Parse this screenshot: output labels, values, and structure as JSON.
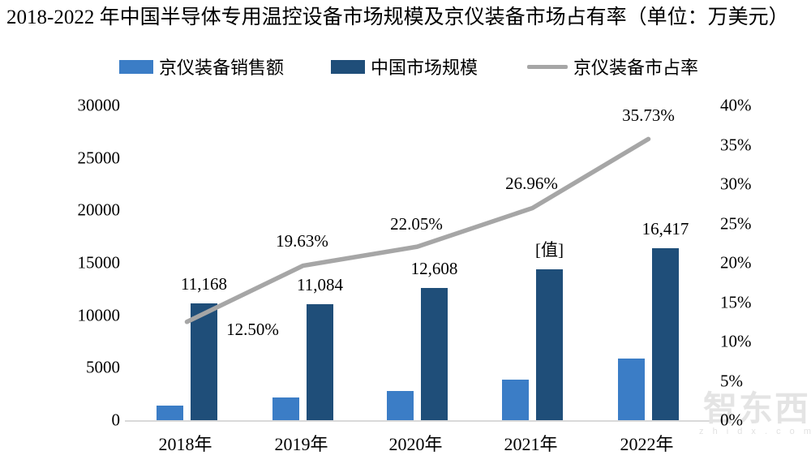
{
  "title": "2018-2022 年中国半导体专用温控设备市场规模及京仪装备市场占有率（单位：万美元）",
  "colors": {
    "sales_bar": "#3B7DC6",
    "market_bar": "#1F4E79",
    "share_line": "#A6A6A6",
    "baseline": "#D9D9D9",
    "text": "#000000"
  },
  "legend": [
    {
      "label": "京仪装备销售额",
      "type": "bar",
      "color_key": "sales_bar"
    },
    {
      "label": "中国市场规模",
      "type": "bar",
      "color_key": "market_bar"
    },
    {
      "label": "京仪装备市占率",
      "type": "line",
      "color_key": "share_line"
    }
  ],
  "watermark": {
    "brand": "智东西",
    "domain": "z h i d x . c o m"
  },
  "chart_data": {
    "type": "bar",
    "subtype": "grouped bars with secondary-axis line (combo)",
    "title": "2018-2022 年中国半导体专用温控设备市场规模及京仪装备市场占有率（单位：万美元）",
    "unit": "万美元",
    "categories": [
      "2018年",
      "2019年",
      "2020年",
      "2021年",
      "2022年"
    ],
    "series": [
      {
        "name": "京仪装备销售额",
        "type": "bar",
        "axis": "left",
        "values": [
          1396,
          2176,
          2780,
          3868,
          5866
        ],
        "labels": [
          "",
          "",
          "",
          "",
          ""
        ],
        "note": "values estimated from bar heights (≈ market size × share); no data labels shown"
      },
      {
        "name": "中国市场规模",
        "type": "bar",
        "axis": "left",
        "values": [
          11168,
          11084,
          12608,
          14350,
          16417
        ],
        "labels": [
          "11,168",
          "11,084",
          "12,608",
          "[值]",
          "16,417"
        ],
        "note": "2021 label shows placeholder [值]; 14350 estimated from bar height"
      },
      {
        "name": "京仪装备市占率",
        "type": "line",
        "axis": "right",
        "values": [
          12.5,
          19.63,
          22.05,
          26.96,
          35.73
        ],
        "labels": [
          "12.50%",
          "19.63%",
          "22.05%",
          "26.96%",
          "35.73%"
        ]
      }
    ],
    "left_axis": {
      "min": 0,
      "max": 30000,
      "step": 5000,
      "ticks": [
        "30000",
        "25000",
        "20000",
        "15000",
        "10000",
        "5000",
        "0"
      ]
    },
    "right_axis": {
      "min": 0,
      "max": 40,
      "step": 5,
      "ticks": [
        "40%",
        "35%",
        "30%",
        "25%",
        "20%",
        "15%",
        "10%",
        "5%",
        "0%"
      ]
    },
    "grid": "baseline only",
    "legend_position": "top"
  }
}
